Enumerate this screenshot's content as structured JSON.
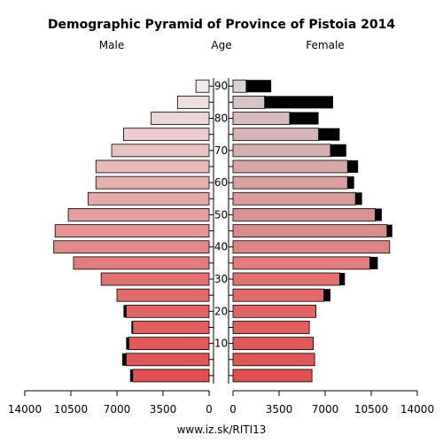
{
  "chart_data": {
    "type": "bar",
    "title": "Demographic Pyramid of Province of Pistoia 2014",
    "left_label": "Male",
    "center_label": "Age",
    "right_label": "Female",
    "x_ticks_left": [
      "14000",
      "10500",
      "7000",
      "3500",
      "0"
    ],
    "x_ticks_right": [
      "0",
      "3500",
      "7000",
      "10500",
      "14000"
    ],
    "x_tick_values": [
      14000,
      10500,
      7000,
      3500,
      0
    ],
    "xlim": [
      0,
      14000
    ],
    "age_ticks": [
      "10",
      "20",
      "30",
      "40",
      "50",
      "60",
      "70",
      "80",
      "90"
    ],
    "age_tick_values": [
      10,
      20,
      30,
      40,
      50,
      60,
      70,
      80,
      90
    ],
    "age_groups": [
      0,
      5,
      10,
      15,
      20,
      25,
      30,
      35,
      40,
      45,
      50,
      55,
      60,
      65,
      70,
      75,
      80,
      85,
      90
    ],
    "male_total": [
      6000,
      6600,
      6300,
      5900,
      6500,
      7000,
      8200,
      10300,
      11800,
      11700,
      10700,
      9200,
      8600,
      8600,
      7400,
      6500,
      4400,
      2400,
      1000
    ],
    "male_citizen": [
      5800,
      6300,
      6100,
      5800,
      6300,
      7000,
      8200,
      10300,
      11800,
      11700,
      10700,
      9200,
      8600,
      8600,
      7400,
      6500,
      4400,
      2400,
      1000
    ],
    "female_total": [
      6000,
      6200,
      6100,
      5800,
      6300,
      7400,
      8500,
      11000,
      11900,
      12100,
      11300,
      9800,
      9200,
      9500,
      8600,
      8100,
      6500,
      7600,
      2900
    ],
    "female_citizen": [
      6000,
      6200,
      6100,
      5800,
      6300,
      6900,
      8100,
      10400,
      11900,
      11700,
      10800,
      9300,
      8700,
      8700,
      7400,
      6500,
      4300,
      2400,
      1000
    ],
    "foreign_color": "#000000",
    "male_colors": [
      "#e05050",
      "#e05555",
      "#e05a5a",
      "#e05f5f",
      "#e16464",
      "#e16a6a",
      "#e27272",
      "#e27c7c",
      "#e38888",
      "#e49494",
      "#e59f9f",
      "#e6a9a9",
      "#e6b0b0",
      "#e8baba",
      "#e9c3c3",
      "#ebcccc",
      "#ecd5d5",
      "#eedfdf",
      "#f2eaea"
    ],
    "female_colors": [
      "#e05050",
      "#e05555",
      "#e05a5a",
      "#e05f5f",
      "#e16464",
      "#e16a6a",
      "#e27272",
      "#e27c7c",
      "#db8585",
      "#d98c8c",
      "#d89393",
      "#d89a9a",
      "#d79f9f",
      "#d6a8a8",
      "#d5b0b0",
      "#d4b6b6",
      "#d6bcbc",
      "#d7c5c5",
      "#dbd3d3"
    ]
  },
  "source": "www.iz.sk/RITI13"
}
